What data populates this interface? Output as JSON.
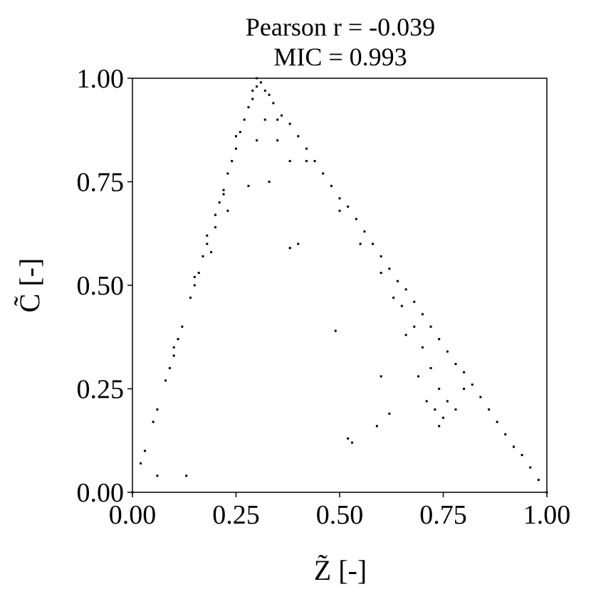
{
  "chart_data": {
    "type": "scatter",
    "title": "Pearson r = -0.039",
    "subtitle": "MIC = 0.993",
    "x_label": "Z̃ [-]",
    "y_label": "C̃ [-]",
    "color": "#000000",
    "xlim": [
      0,
      1
    ],
    "ylim": [
      0,
      1
    ],
    "xticks": [
      {
        "value": 0,
        "label": "0.00"
      },
      {
        "value": 0.25,
        "label": "0.25"
      },
      {
        "value": 0.5,
        "label": "0.50"
      },
      {
        "value": 0.75,
        "label": "0.75"
      },
      {
        "value": 1,
        "label": "1.00"
      }
    ],
    "yticks": [
      {
        "value": 0,
        "label": "0.00"
      },
      {
        "value": 0.25,
        "label": "0.25"
      },
      {
        "value": 0.5,
        "label": "0.50"
      },
      {
        "value": 0.75,
        "label": "0.75"
      },
      {
        "value": 1,
        "label": "1.00"
      }
    ],
    "x": [
      0.0,
      0.02,
      0.03,
      0.05,
      0.06,
      0.08,
      0.09,
      0.1,
      0.11,
      0.12,
      0.14,
      0.15,
      0.16,
      0.17,
      0.18,
      0.2,
      0.21,
      0.22,
      0.23,
      0.24,
      0.25,
      0.26,
      0.27,
      0.28,
      0.29,
      0.3,
      0.1,
      0.15,
      0.2,
      0.25,
      0.18,
      0.32,
      0.34,
      0.36,
      0.38,
      0.4,
      0.42,
      0.44,
      0.46,
      0.48,
      0.5,
      0.52,
      0.54,
      0.56,
      0.58,
      0.6,
      0.62,
      0.64,
      0.66,
      0.68,
      0.7,
      0.72,
      0.74,
      0.76,
      0.78,
      0.8,
      0.82,
      0.84,
      0.86,
      0.88,
      0.9,
      0.92,
      0.94,
      0.96,
      0.98,
      1.0,
      0.35,
      0.42,
      0.5,
      0.55,
      0.6,
      0.65,
      0.68,
      0.7,
      0.72,
      0.74,
      0.73,
      0.75,
      0.76,
      0.78,
      0.71,
      0.74,
      0.8,
      0.69,
      0.66,
      0.63,
      0.3,
      0.31,
      0.29,
      0.33,
      0.32,
      0.3,
      0.35,
      0.13,
      0.06,
      0.53,
      0.52,
      0.62,
      0.59,
      0.6,
      0.49,
      0.4,
      0.38,
      0.19,
      0.23,
      0.28,
      0.33,
      0.38,
      0.22
    ],
    "y": [
      0.0,
      0.07,
      0.1,
      0.17,
      0.2,
      0.27,
      0.3,
      0.33,
      0.37,
      0.4,
      0.47,
      0.5,
      0.53,
      0.57,
      0.6,
      0.67,
      0.7,
      0.73,
      0.77,
      0.8,
      0.83,
      0.87,
      0.9,
      0.93,
      0.97,
      1.0,
      0.35,
      0.52,
      0.64,
      0.86,
      0.62,
      0.97,
      0.94,
      0.91,
      0.89,
      0.86,
      0.83,
      0.8,
      0.77,
      0.74,
      0.71,
      0.69,
      0.66,
      0.63,
      0.6,
      0.57,
      0.54,
      0.51,
      0.49,
      0.46,
      0.43,
      0.4,
      0.37,
      0.34,
      0.31,
      0.29,
      0.26,
      0.23,
      0.2,
      0.17,
      0.14,
      0.11,
      0.09,
      0.06,
      0.03,
      0.0,
      0.9,
      0.8,
      0.68,
      0.6,
      0.53,
      0.45,
      0.4,
      0.35,
      0.3,
      0.25,
      0.2,
      0.18,
      0.22,
      0.2,
      0.22,
      0.16,
      0.25,
      0.28,
      0.38,
      0.47,
      0.98,
      0.99,
      0.95,
      0.96,
      0.9,
      0.85,
      0.85,
      0.04,
      0.04,
      0.12,
      0.13,
      0.19,
      0.16,
      0.28,
      0.39,
      0.6,
      0.59,
      0.58,
      0.68,
      0.74,
      0.75,
      0.8,
      0.72
    ]
  }
}
